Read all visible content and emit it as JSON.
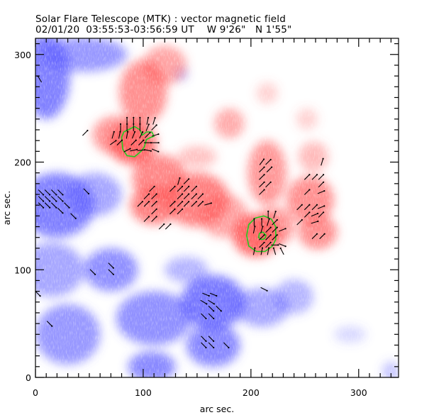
{
  "header": {
    "title": "Solar Flare Telescope (MTK) : vector magnetic field",
    "date": "02/01/20",
    "time_range": "03:55:53-03:56:59 UT",
    "longitude": "W 9'26\"",
    "latitude": "N 1'55\""
  },
  "chart_data": {
    "type": "heatmap",
    "title": "Solar Flare Telescope (MTK) : vector magnetic field",
    "subtitle": "02/01/20  03:55:53-03:56:59 UT   W 9'26\"  N 1'55\"",
    "xlabel": "arc sec.",
    "ylabel": "arc sec.",
    "xlim": [
      0,
      337
    ],
    "ylim": [
      0,
      315
    ],
    "x_ticks": [
      0,
      100,
      200,
      300
    ],
    "y_ticks": [
      0,
      100,
      200,
      300
    ],
    "x_tick_labels": [
      "0",
      "100",
      "200",
      "300"
    ],
    "y_tick_labels": [
      "0",
      "100",
      "200",
      "300"
    ],
    "minor_tick_step": 10,
    "grid": false,
    "colors": {
      "positive_polarity": "#ff5a5a",
      "negative_polarity": "#5a5aff",
      "contour": "#22cc22",
      "vectors": "#000000"
    },
    "positive_regions": [
      {
        "x": 90,
        "y": 218,
        "rx": 22,
        "ry": 20,
        "strength": 1.0
      },
      {
        "x": 100,
        "y": 265,
        "rx": 22,
        "ry": 30,
        "strength": 0.75
      },
      {
        "x": 120,
        "y": 290,
        "rx": 20,
        "ry": 18,
        "strength": 0.6
      },
      {
        "x": 75,
        "y": 225,
        "rx": 22,
        "ry": 18,
        "strength": 0.7
      },
      {
        "x": 115,
        "y": 185,
        "rx": 25,
        "ry": 22,
        "strength": 0.8
      },
      {
        "x": 110,
        "y": 160,
        "rx": 22,
        "ry": 18,
        "strength": 0.85
      },
      {
        "x": 150,
        "y": 165,
        "rx": 30,
        "ry": 25,
        "strength": 0.85
      },
      {
        "x": 175,
        "y": 150,
        "rx": 22,
        "ry": 20,
        "strength": 0.6
      },
      {
        "x": 205,
        "y": 132,
        "rx": 22,
        "ry": 20,
        "strength": 1.0
      },
      {
        "x": 222,
        "y": 140,
        "rx": 18,
        "ry": 18,
        "strength": 0.7
      },
      {
        "x": 215,
        "y": 190,
        "rx": 18,
        "ry": 30,
        "strength": 0.7
      },
      {
        "x": 255,
        "y": 165,
        "rx": 22,
        "ry": 22,
        "strength": 0.75
      },
      {
        "x": 262,
        "y": 135,
        "rx": 18,
        "ry": 16,
        "strength": 0.75
      },
      {
        "x": 258,
        "y": 205,
        "rx": 14,
        "ry": 14,
        "strength": 0.45
      },
      {
        "x": 180,
        "y": 236,
        "rx": 14,
        "ry": 14,
        "strength": 0.55
      },
      {
        "x": 215,
        "y": 264,
        "rx": 10,
        "ry": 10,
        "strength": 0.3
      },
      {
        "x": 252,
        "y": 240,
        "rx": 10,
        "ry": 10,
        "strength": 0.3
      },
      {
        "x": 150,
        "y": 205,
        "rx": 18,
        "ry": 10,
        "strength": 0.4
      }
    ],
    "negative_regions": [
      {
        "x": 10,
        "y": 280,
        "rx": 22,
        "ry": 40,
        "strength": 0.85
      },
      {
        "x": 45,
        "y": 300,
        "rx": 40,
        "ry": 16,
        "strength": 0.7
      },
      {
        "x": 20,
        "y": 160,
        "rx": 35,
        "ry": 30,
        "strength": 0.85
      },
      {
        "x": 55,
        "y": 170,
        "rx": 25,
        "ry": 20,
        "strength": 0.6
      },
      {
        "x": 15,
        "y": 100,
        "rx": 30,
        "ry": 25,
        "strength": 0.6
      },
      {
        "x": 70,
        "y": 100,
        "rx": 25,
        "ry": 20,
        "strength": 0.75
      },
      {
        "x": 30,
        "y": 40,
        "rx": 30,
        "ry": 28,
        "strength": 0.7
      },
      {
        "x": 110,
        "y": 55,
        "rx": 35,
        "ry": 25,
        "strength": 0.75
      },
      {
        "x": 108,
        "y": 10,
        "rx": 22,
        "ry": 14,
        "strength": 0.8
      },
      {
        "x": 165,
        "y": 70,
        "rx": 30,
        "ry": 25,
        "strength": 0.9
      },
      {
        "x": 165,
        "y": 30,
        "rx": 25,
        "ry": 20,
        "strength": 0.8
      },
      {
        "x": 210,
        "y": 65,
        "rx": 25,
        "ry": 18,
        "strength": 0.6
      },
      {
        "x": 240,
        "y": 75,
        "rx": 18,
        "ry": 16,
        "strength": 0.5
      },
      {
        "x": 140,
        "y": 100,
        "rx": 20,
        "ry": 12,
        "strength": 0.5
      },
      {
        "x": 135,
        "y": 282,
        "rx": 6,
        "ry": 6,
        "strength": 0.45
      },
      {
        "x": 292,
        "y": 40,
        "rx": 15,
        "ry": 8,
        "strength": 0.25
      },
      {
        "x": 330,
        "y": 5,
        "rx": 8,
        "ry": 10,
        "strength": 0.4
      }
    ],
    "contours": [
      {
        "name": "umbra-east",
        "points": [
          [
            80,
            223
          ],
          [
            81,
            212
          ],
          [
            85,
            206
          ],
          [
            92,
            205
          ],
          [
            98,
            210
          ],
          [
            101,
            214
          ],
          [
            103,
            221
          ],
          [
            107,
            223
          ],
          [
            110,
            224
          ],
          [
            108,
            228
          ],
          [
            103,
            228
          ],
          [
            99,
            225
          ],
          [
            97,
            230
          ],
          [
            92,
            233
          ],
          [
            86,
            230
          ],
          [
            82,
            228
          ]
        ]
      },
      {
        "name": "umbra-west-outer",
        "points": [
          [
            196,
            132
          ],
          [
            198,
            122
          ],
          [
            205,
            117
          ],
          [
            213,
            117
          ],
          [
            220,
            122
          ],
          [
            223,
            128
          ],
          [
            223,
            135
          ],
          [
            223,
            140
          ],
          [
            219,
            147
          ],
          [
            212,
            150
          ],
          [
            204,
            148
          ],
          [
            198,
            142
          ]
        ]
      },
      {
        "name": "umbra-west-inner",
        "points": [
          [
            207,
            130
          ],
          [
            210,
            128
          ],
          [
            213,
            129
          ],
          [
            214,
            132
          ],
          [
            211,
            135
          ],
          [
            208,
            134
          ]
        ]
      }
    ],
    "vectors": [
      {
        "x": 4,
        "y": 277,
        "dx": -0.6,
        "dy": 1.0
      },
      {
        "x": 46,
        "y": 227,
        "dx": 0.7,
        "dy": 0.7
      },
      {
        "x": 85,
        "y": 238,
        "dx": 0,
        "dy": 1
      },
      {
        "x": 91,
        "y": 238,
        "dx": 0,
        "dy": 1
      },
      {
        "x": 97,
        "y": 238,
        "dx": 0,
        "dy": 1
      },
      {
        "x": 104,
        "y": 238,
        "dx": 0.2,
        "dy": 1
      },
      {
        "x": 110,
        "y": 238,
        "dx": 0.3,
        "dy": 1
      },
      {
        "x": 79,
        "y": 232,
        "dx": 0,
        "dy": 1
      },
      {
        "x": 85,
        "y": 232,
        "dx": 0,
        "dy": 1
      },
      {
        "x": 91,
        "y": 232,
        "dx": 0,
        "dy": 1
      },
      {
        "x": 97,
        "y": 232,
        "dx": 0,
        "dy": 1
      },
      {
        "x": 104,
        "y": 232,
        "dx": 0.4,
        "dy": 1
      },
      {
        "x": 110,
        "y": 232,
        "dx": 0.7,
        "dy": 0.7
      },
      {
        "x": 72,
        "y": 225,
        "dx": 0.3,
        "dy": 1
      },
      {
        "x": 78,
        "y": 225,
        "dx": 0.2,
        "dy": 1
      },
      {
        "x": 85,
        "y": 225,
        "dx": 0.2,
        "dy": 1
      },
      {
        "x": 91,
        "y": 225,
        "dx": 0.4,
        "dy": 1
      },
      {
        "x": 98,
        "y": 225,
        "dx": 0.5,
        "dy": 1
      },
      {
        "x": 104,
        "y": 225,
        "dx": 0.7,
        "dy": 0.7
      },
      {
        "x": 111,
        "y": 225,
        "dx": 1,
        "dy": 0.3
      },
      {
        "x": 72,
        "y": 218,
        "dx": 1,
        "dy": 0.7
      },
      {
        "x": 78,
        "y": 218,
        "dx": 0.7,
        "dy": 0.7
      },
      {
        "x": 91,
        "y": 218,
        "dx": 0.7,
        "dy": 0.7
      },
      {
        "x": 98,
        "y": 218,
        "dx": 0.7,
        "dy": 0.7
      },
      {
        "x": 104,
        "y": 218,
        "dx": 1,
        "dy": 0
      },
      {
        "x": 111,
        "y": 218,
        "dx": 1,
        "dy": 0
      },
      {
        "x": 91,
        "y": 211,
        "dx": 1,
        "dy": 0.2
      },
      {
        "x": 98,
        "y": 211,
        "dx": 1,
        "dy": 0.1
      },
      {
        "x": 104,
        "y": 211,
        "dx": 1,
        "dy": -0.2
      },
      {
        "x": 111,
        "y": 211,
        "dx": 1,
        "dy": -0.4
      },
      {
        "x": 85,
        "y": 211,
        "dx": 1,
        "dy": 0.5
      },
      {
        "x": 133,
        "y": 182,
        "dx": 0.3,
        "dy": 1
      },
      {
        "x": 140,
        "y": 182,
        "dx": 0.7,
        "dy": 0.7
      },
      {
        "x": 127,
        "y": 175,
        "dx": 0.7,
        "dy": 0.7
      },
      {
        "x": 134,
        "y": 175,
        "dx": 0.7,
        "dy": 0.7
      },
      {
        "x": 140,
        "y": 175,
        "dx": 0.7,
        "dy": 0.7
      },
      {
        "x": 147,
        "y": 175,
        "dx": 0.7,
        "dy": 0.7
      },
      {
        "x": 108,
        "y": 175,
        "dx": 0.7,
        "dy": 0.7
      },
      {
        "x": 103,
        "y": 168,
        "dx": 0.7,
        "dy": 0.7
      },
      {
        "x": 110,
        "y": 168,
        "dx": 0.7,
        "dy": 0.7
      },
      {
        "x": 134,
        "y": 168,
        "dx": 0.7,
        "dy": 0.7
      },
      {
        "x": 140,
        "y": 168,
        "dx": 0.7,
        "dy": 0.7
      },
      {
        "x": 147,
        "y": 168,
        "dx": 0.7,
        "dy": 0.7
      },
      {
        "x": 153,
        "y": 168,
        "dx": 0.7,
        "dy": 0.7
      },
      {
        "x": 97,
        "y": 161,
        "dx": 0.7,
        "dy": 0.7
      },
      {
        "x": 103,
        "y": 161,
        "dx": 0.7,
        "dy": 0.7
      },
      {
        "x": 110,
        "y": 161,
        "dx": 0.7,
        "dy": 0.7
      },
      {
        "x": 127,
        "y": 161,
        "dx": 0.7,
        "dy": 0.7
      },
      {
        "x": 134,
        "y": 161,
        "dx": 0.7,
        "dy": 0.7
      },
      {
        "x": 140,
        "y": 161,
        "dx": 0.7,
        "dy": 0.7
      },
      {
        "x": 147,
        "y": 161,
        "dx": 0.7,
        "dy": 0.7
      },
      {
        "x": 153,
        "y": 161,
        "dx": 0.7,
        "dy": 0.7
      },
      {
        "x": 160,
        "y": 161,
        "dx": 1,
        "dy": 0.3
      },
      {
        "x": 110,
        "y": 154,
        "dx": 0.7,
        "dy": 0.7
      },
      {
        "x": 127,
        "y": 154,
        "dx": 0.7,
        "dy": 0.7
      },
      {
        "x": 134,
        "y": 154,
        "dx": 0.7,
        "dy": 0.7
      },
      {
        "x": 103,
        "y": 147,
        "dx": 0.7,
        "dy": 0.7
      },
      {
        "x": 110,
        "y": 147,
        "dx": 0.7,
        "dy": 0.7
      },
      {
        "x": 117,
        "y": 140,
        "dx": 0.7,
        "dy": 0.7
      },
      {
        "x": 123,
        "y": 140,
        "dx": 0.7,
        "dy": 0.7
      },
      {
        "x": 210,
        "y": 200,
        "dx": 0.6,
        "dy": 0.8
      },
      {
        "x": 216,
        "y": 200,
        "dx": 0.7,
        "dy": 0.7
      },
      {
        "x": 210,
        "y": 193,
        "dx": 0.7,
        "dy": 0.7
      },
      {
        "x": 217,
        "y": 193,
        "dx": 0.7,
        "dy": 0.7
      },
      {
        "x": 210,
        "y": 186,
        "dx": 0.7,
        "dy": 0.7
      },
      {
        "x": 210,
        "y": 179,
        "dx": 0.7,
        "dy": 0.7
      },
      {
        "x": 216,
        "y": 179,
        "dx": 0.7,
        "dy": 0.7
      },
      {
        "x": 210,
        "y": 172,
        "dx": 0.7,
        "dy": 0.7
      },
      {
        "x": 266,
        "y": 200,
        "dx": 0.3,
        "dy": 1
      },
      {
        "x": 252,
        "y": 186,
        "dx": 0.7,
        "dy": 0.7
      },
      {
        "x": 259,
        "y": 186,
        "dx": 0.7,
        "dy": 0.7
      },
      {
        "x": 265,
        "y": 186,
        "dx": 0.7,
        "dy": 0.7
      },
      {
        "x": 265,
        "y": 179,
        "dx": 0.7,
        "dy": 0.7
      },
      {
        "x": 252,
        "y": 172,
        "dx": 0.7,
        "dy": 0.7
      },
      {
        "x": 265,
        "y": 172,
        "dx": 1,
        "dy": 0.4
      },
      {
        "x": 245,
        "y": 158,
        "dx": 0.7,
        "dy": 0.7
      },
      {
        "x": 252,
        "y": 158,
        "dx": 0.7,
        "dy": 0.7
      },
      {
        "x": 259,
        "y": 158,
        "dx": 0.7,
        "dy": 0.7
      },
      {
        "x": 265,
        "y": 158,
        "dx": 1,
        "dy": 0.4
      },
      {
        "x": 252,
        "y": 151,
        "dx": 0.7,
        "dy": 0.7
      },
      {
        "x": 259,
        "y": 151,
        "dx": 1,
        "dy": 0.4
      },
      {
        "x": 265,
        "y": 151,
        "dx": 0.7,
        "dy": 0.7
      },
      {
        "x": 245,
        "y": 144,
        "dx": 0.7,
        "dy": 0.7
      },
      {
        "x": 259,
        "y": 144,
        "dx": 1,
        "dy": 0.3
      },
      {
        "x": 259,
        "y": 131,
        "dx": 0.7,
        "dy": 0.7
      },
      {
        "x": 266,
        "y": 131,
        "dx": 0.7,
        "dy": 0.7
      },
      {
        "x": 216,
        "y": 151,
        "dx": 0,
        "dy": 1
      },
      {
        "x": 222,
        "y": 151,
        "dx": 0.3,
        "dy": 1
      },
      {
        "x": 203,
        "y": 144,
        "dx": 0,
        "dy": 1
      },
      {
        "x": 210,
        "y": 144,
        "dx": 0,
        "dy": 1
      },
      {
        "x": 216,
        "y": 144,
        "dx": 0.3,
        "dy": 1
      },
      {
        "x": 222,
        "y": 144,
        "dx": 0.7,
        "dy": 0.7
      },
      {
        "x": 203,
        "y": 137,
        "dx": 0.2,
        "dy": 1
      },
      {
        "x": 210,
        "y": 137,
        "dx": 0.3,
        "dy": 1
      },
      {
        "x": 216,
        "y": 137,
        "dx": 0.7,
        "dy": 0.7
      },
      {
        "x": 222,
        "y": 137,
        "dx": 0.7,
        "dy": 0.7
      },
      {
        "x": 229,
        "y": 137,
        "dx": 1,
        "dy": 0.4
      },
      {
        "x": 210,
        "y": 130,
        "dx": 0.7,
        "dy": 0.7
      },
      {
        "x": 216,
        "y": 130,
        "dx": 0.7,
        "dy": 0.7
      },
      {
        "x": 222,
        "y": 130,
        "dx": 0.7,
        "dy": 0.7
      },
      {
        "x": 210,
        "y": 123,
        "dx": 0.7,
        "dy": 0.7
      },
      {
        "x": 216,
        "y": 123,
        "dx": 0.7,
        "dy": 0.7
      },
      {
        "x": 222,
        "y": 123,
        "dx": 1,
        "dy": 0
      },
      {
        "x": 229,
        "y": 123,
        "dx": 1,
        "dy": -0.4
      },
      {
        "x": 203,
        "y": 117,
        "dx": 0.2,
        "dy": 1
      },
      {
        "x": 210,
        "y": 117,
        "dx": 0.2,
        "dy": 1
      },
      {
        "x": 216,
        "y": 117,
        "dx": 0.2,
        "dy": 1
      },
      {
        "x": 222,
        "y": 117,
        "dx": -0.3,
        "dy": 1
      },
      {
        "x": 229,
        "y": 117,
        "dx": -0.5,
        "dy": 1
      },
      {
        "x": 5,
        "y": 172,
        "dx": 0.7,
        "dy": -0.7
      },
      {
        "x": 11,
        "y": 172,
        "dx": 0.7,
        "dy": -0.7
      },
      {
        "x": 17,
        "y": 172,
        "dx": 0.7,
        "dy": -0.7
      },
      {
        "x": 23,
        "y": 172,
        "dx": 0.7,
        "dy": -0.7
      },
      {
        "x": 5,
        "y": 166,
        "dx": 0.7,
        "dy": -0.7
      },
      {
        "x": 11,
        "y": 166,
        "dx": 0.7,
        "dy": -0.7
      },
      {
        "x": 17,
        "y": 166,
        "dx": 0.7,
        "dy": -0.7
      },
      {
        "x": 23,
        "y": 166,
        "dx": 0.7,
        "dy": -0.7
      },
      {
        "x": 5,
        "y": 160,
        "dx": 0.7,
        "dy": -0.7
      },
      {
        "x": 11,
        "y": 160,
        "dx": 0.7,
        "dy": -0.7
      },
      {
        "x": 17,
        "y": 160,
        "dx": 0.7,
        "dy": -0.7
      },
      {
        "x": 29,
        "y": 160,
        "dx": 0.7,
        "dy": -0.7
      },
      {
        "x": 23,
        "y": 155,
        "dx": 0.7,
        "dy": -0.7
      },
      {
        "x": 47,
        "y": 173,
        "dx": 0.7,
        "dy": -0.7
      },
      {
        "x": 35,
        "y": 150,
        "dx": 0.7,
        "dy": -0.7
      },
      {
        "x": 53,
        "y": 98,
        "dx": 0.7,
        "dy": -0.7
      },
      {
        "x": 70,
        "y": 98,
        "dx": 0.7,
        "dy": -0.7
      },
      {
        "x": 70,
        "y": 104,
        "dx": 0.7,
        "dy": -0.7
      },
      {
        "x": 2,
        "y": 78,
        "dx": 0.7,
        "dy": -0.7
      },
      {
        "x": 13,
        "y": 50,
        "dx": 0.7,
        "dy": -0.7
      },
      {
        "x": 158,
        "y": 77,
        "dx": 1,
        "dy": -0.4
      },
      {
        "x": 165,
        "y": 77,
        "dx": 1,
        "dy": -0.4
      },
      {
        "x": 156,
        "y": 70,
        "dx": 1,
        "dy": -0.6
      },
      {
        "x": 163,
        "y": 70,
        "dx": 1,
        "dy": -0.6
      },
      {
        "x": 163,
        "y": 64,
        "dx": 0.7,
        "dy": -0.7
      },
      {
        "x": 170,
        "y": 64,
        "dx": 0.7,
        "dy": -0.7
      },
      {
        "x": 156,
        "y": 57,
        "dx": 0.7,
        "dy": -0.7
      },
      {
        "x": 163,
        "y": 57,
        "dx": 0.7,
        "dy": -0.7
      },
      {
        "x": 156,
        "y": 36,
        "dx": 0.7,
        "dy": -0.7
      },
      {
        "x": 163,
        "y": 36,
        "dx": 0.7,
        "dy": -0.7
      },
      {
        "x": 156,
        "y": 30,
        "dx": 0.7,
        "dy": -0.7
      },
      {
        "x": 163,
        "y": 30,
        "dx": 0.7,
        "dy": -0.7
      },
      {
        "x": 177,
        "y": 30,
        "dx": 0.7,
        "dy": -0.7
      },
      {
        "x": 212,
        "y": 82,
        "dx": 1,
        "dy": -0.5
      }
    ]
  }
}
